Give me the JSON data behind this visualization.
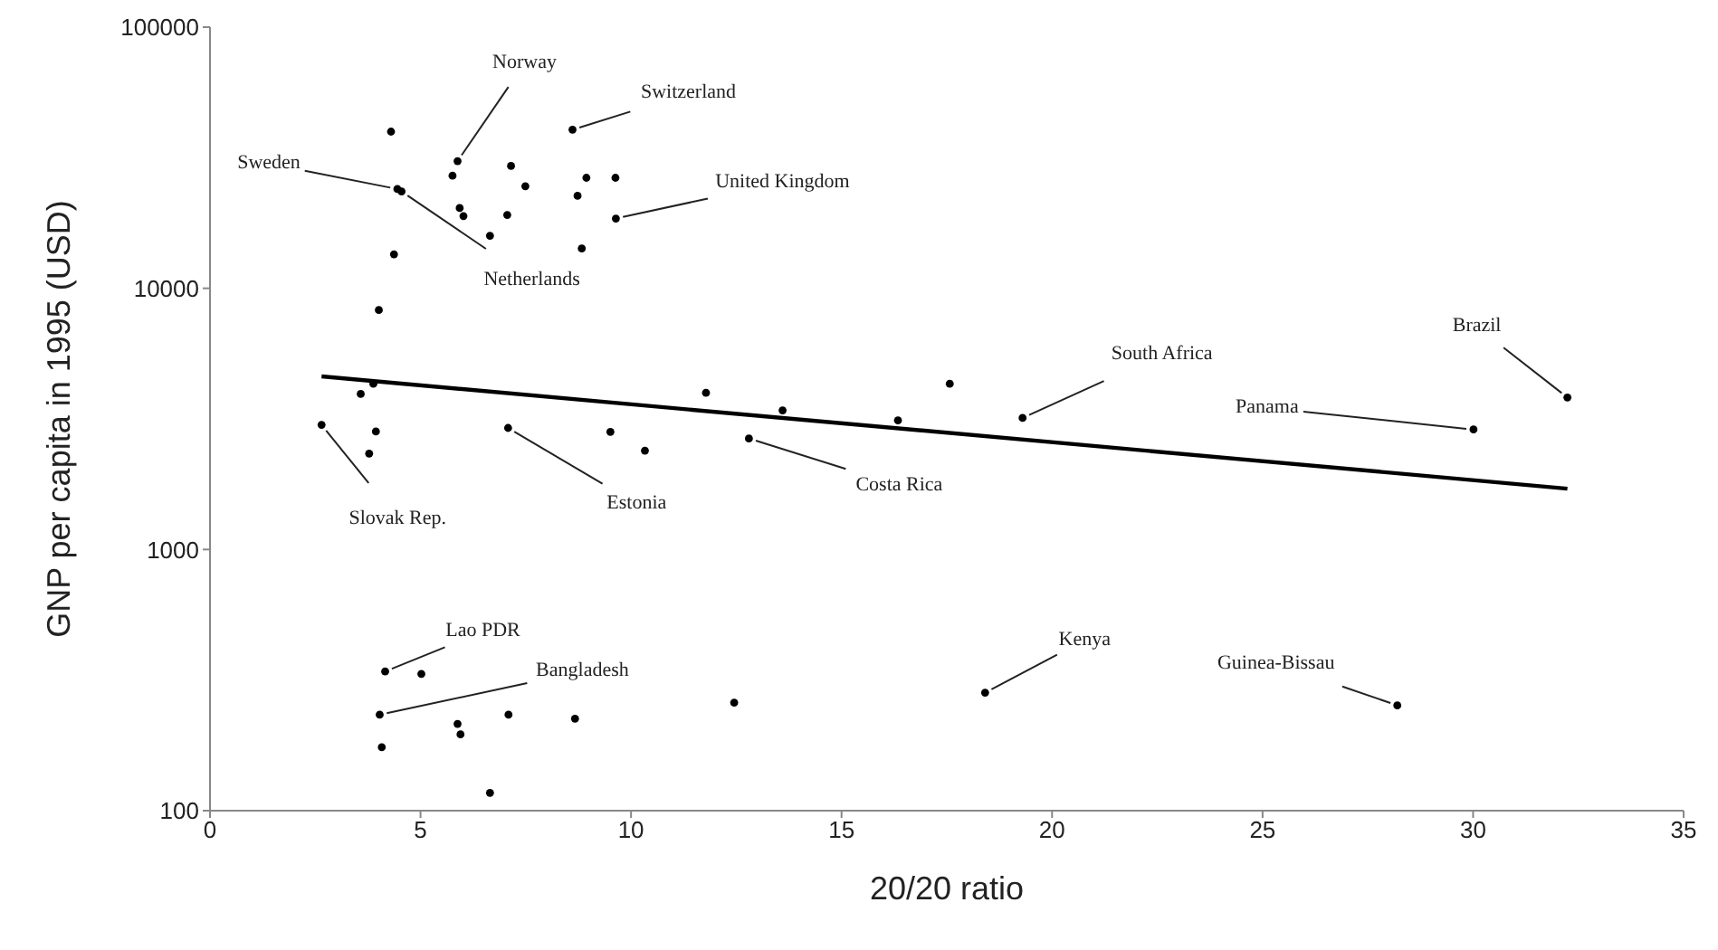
{
  "chart_data": {
    "type": "scatter",
    "xlabel": "20/20 ratio",
    "ylabel": "GNP per capita in 1995 (USD)",
    "xlim": [
      0,
      35
    ],
    "xticks": [
      0,
      5,
      10,
      15,
      20,
      25,
      30,
      35
    ],
    "ylim": [
      100,
      100000
    ],
    "yticks": [
      100,
      1000,
      10000,
      100000
    ],
    "log": "y",
    "legend": false,
    "series": [
      {
        "type": "scatter",
        "marker": "circle",
        "color": "#000000",
        "x": [
          4.3,
          5.88,
          5.76,
          7.15,
          7.49,
          8.61,
          8.94,
          9.63,
          8.73,
          9.64,
          8.83,
          4.45,
          4.55,
          5.93,
          6.02,
          7.06,
          6.65,
          4.37,
          4.01,
          3.88,
          3.58,
          2.65,
          3.94,
          3.78,
          7.08,
          9.51,
          10.33,
          11.78,
          12.8,
          13.6,
          16.34,
          17.57,
          19.3,
          30.01,
          32.24,
          4.16,
          5.02,
          4.03,
          5.88,
          5.95,
          7.09,
          8.67,
          4.08,
          6.65,
          12.45,
          18.41,
          28.2
        ],
        "values": [
          39800,
          30700,
          27000,
          29400,
          24600,
          40500,
          26500,
          26500,
          22600,
          18500,
          14200,
          24000,
          23500,
          20300,
          18900,
          19100,
          15900,
          13500,
          8260,
          4310,
          3940,
          3000,
          2830,
          2330,
          2920,
          2820,
          2390,
          3980,
          2660,
          3410,
          3120,
          4310,
          3190,
          2880,
          3820,
          341,
          334,
          233,
          215,
          196,
          233,
          225,
          175,
          117,
          259,
          283,
          253
        ]
      },
      {
        "type": "line",
        "color": "#000000",
        "x": [
          2.65,
          32.24
        ],
        "values": [
          4600,
          1710
        ]
      }
    ],
    "annotations": [
      {
        "text": "Norway",
        "x": 5.88,
        "y": 30700
      },
      {
        "text": "Switzerland",
        "x": 8.61,
        "y": 40500
      },
      {
        "text": "Sweden",
        "x": 4.45,
        "y": 24000
      },
      {
        "text": "Netherlands",
        "x": 4.55,
        "y": 23500
      },
      {
        "text": "United Kingdom",
        "x": 9.64,
        "y": 18500
      },
      {
        "text": "South Africa",
        "x": 19.3,
        "y": 3190
      },
      {
        "text": "Brazil",
        "x": 32.24,
        "y": 3820
      },
      {
        "text": "Panama",
        "x": 30.01,
        "y": 2880
      },
      {
        "text": "Slovak Rep.",
        "x": 2.65,
        "y": 3000
      },
      {
        "text": "Estonia",
        "x": 7.08,
        "y": 2920
      },
      {
        "text": "Costa Rica",
        "x": 12.8,
        "y": 2660
      },
      {
        "text": "Lao PDR",
        "x": 4.16,
        "y": 341
      },
      {
        "text": "Bangladesh",
        "x": 4.03,
        "y": 233
      },
      {
        "text": "Kenya",
        "x": 18.41,
        "y": 283
      },
      {
        "text": "Guinea-Bissau",
        "x": 28.2,
        "y": 253
      }
    ]
  }
}
